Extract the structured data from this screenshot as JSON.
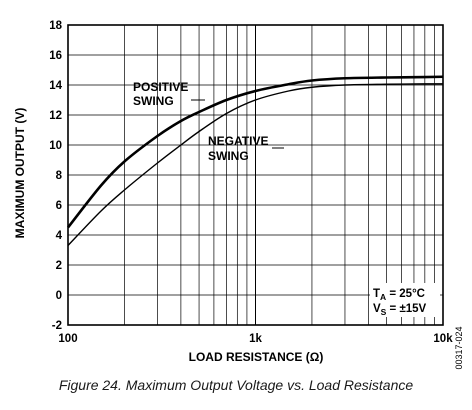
{
  "figure_id": "00317-024",
  "caption": "Figure 24. Maximum Output Voltage vs. Load Resistance",
  "chart_data": {
    "type": "line",
    "xlabel": "LOAD RESISTANCE (Ω)",
    "ylabel": "MAXIMUM OUTPUT (V)",
    "xscale": "log",
    "xlim": [
      100,
      10000
    ],
    "ylim": [
      -2,
      18
    ],
    "x_tick_labels": [
      "100",
      "1k",
      "10k"
    ],
    "x_tick_values": [
      100,
      1000,
      10000
    ],
    "y_ticks": [
      -2,
      0,
      2,
      4,
      6,
      8,
      10,
      12,
      14,
      16,
      18
    ],
    "grid": true,
    "series": [
      {
        "name": "POSITIVE SWING",
        "label_lines": [
          "POSITIVE",
          "SWING"
        ],
        "color": "#000000",
        "x": [
          100,
          150,
          200,
          300,
          400,
          500,
          700,
          1000,
          1500,
          2000,
          3000,
          5000,
          7000,
          10000
        ],
        "y": [
          4.5,
          7.3,
          8.9,
          10.6,
          11.6,
          12.2,
          13.0,
          13.6,
          14.05,
          14.3,
          14.45,
          14.5,
          14.52,
          14.55
        ]
      },
      {
        "name": "NEGATIVE SWING",
        "label_lines": [
          "NEGATIVE",
          "SWING"
        ],
        "color": "#000000",
        "x": [
          100,
          150,
          200,
          300,
          400,
          500,
          700,
          1000,
          1500,
          2000,
          3000,
          5000,
          7000,
          10000
        ],
        "y": [
          3.3,
          5.6,
          7.0,
          8.8,
          10.0,
          10.9,
          12.1,
          13.0,
          13.6,
          13.85,
          14.0,
          14.05,
          14.07,
          14.08
        ]
      }
    ],
    "conditions": [
      "T_A = 25°C",
      "V_S = ±15V"
    ]
  }
}
